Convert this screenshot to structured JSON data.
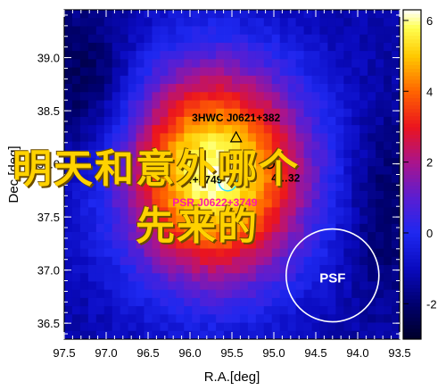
{
  "chart_data": {
    "type": "heatmap",
    "xlabel": "R.A.[deg]",
    "ylabel": "Dec.[deg]",
    "xlim": [
      97.5,
      93.5
    ],
    "ylim": [
      36.35,
      39.45
    ],
    "x_ticks": [
      "97.5",
      "97.0",
      "96.5",
      "96.0",
      "95.5",
      "95.0",
      "94.5",
      "94.0",
      "93.5"
    ],
    "x_tick_values": [
      97.5,
      97.0,
      96.5,
      96.0,
      95.5,
      95.0,
      94.5,
      94.0,
      93.5
    ],
    "y_ticks": [
      "36.5",
      "37.0",
      "37.5",
      "38.0",
      "38.5",
      "39.0"
    ],
    "y_tick_values": [
      36.5,
      37.0,
      37.5,
      38.0,
      38.5,
      39.0
    ],
    "colorbar": {
      "range": [
        -3,
        6.3
      ],
      "ticks": [
        "-2",
        "0",
        "2",
        "4",
        "6"
      ],
      "tick_values": [
        -2,
        0,
        2,
        4,
        6
      ]
    },
    "peak": {
      "ra": 95.7,
      "dec": 37.9,
      "value": 6.2
    },
    "sources": [
      {
        "label": "3HWC J0621+382",
        "ra": 95.45,
        "dec": 38.25,
        "marker": "triangle",
        "color": "#000000"
      },
      {
        "label": "PSR J0622+3749",
        "ra": 95.55,
        "dec": 37.83,
        "marker": "circle",
        "color": "#ff1aa6"
      },
      {
        "label": "…+3749",
        "ra": 96.1,
        "dec": 37.85,
        "marker": "none",
        "color": "#000000"
      },
      {
        "label": "4…32",
        "ra": 95.05,
        "dec": 38.0,
        "marker": "circle",
        "color": "#000000"
      }
    ],
    "psf": {
      "label": "PSF",
      "ra": 94.3,
      "dec": 36.95
    }
  },
  "overlay": {
    "line1": "明天和意外哪个",
    "line2": "先来的"
  }
}
